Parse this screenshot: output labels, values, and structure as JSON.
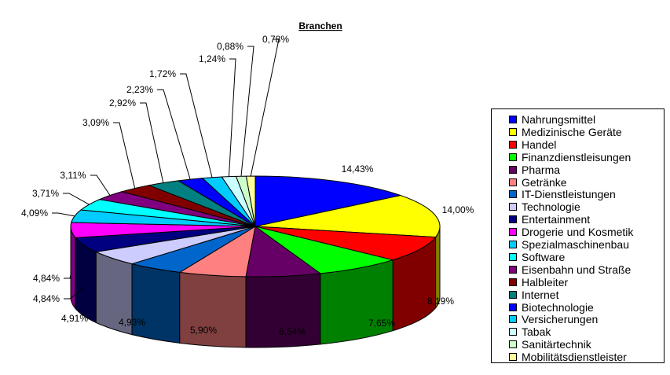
{
  "chart_data": {
    "type": "pie",
    "title": "Branchen",
    "three_d": true,
    "legend_position": "right",
    "categories": [
      "Nahrungsmittel",
      "Medizinische Geräte",
      "Handel",
      "Finanzdienstleisungen",
      "Pharma",
      "Getränke",
      "IT-Dienstleistungen",
      "Technologie",
      "Entertainment",
      "Drogerie und Kosmetik",
      "Spezialmaschinenbau",
      "Software",
      "Eisenbahn und Straße",
      "Halbleiter",
      "Internet",
      "Biotechnologie",
      "Versicherungen",
      "Tabak",
      "Sanitärtechnik",
      "Mobilitätsdienstleister"
    ],
    "values": [
      14.43,
      14.0,
      8.19,
      7.65,
      6.54,
      5.9,
      4.93,
      4.91,
      4.84,
      4.84,
      4.09,
      3.71,
      3.11,
      3.09,
      2.92,
      2.23,
      1.72,
      1.24,
      0.88,
      0.78
    ],
    "data_labels": [
      "14,43%",
      "14,00%",
      "8,19%",
      "7,65%",
      "6,54%",
      "5,90%",
      "4,93%",
      "4,91%",
      "4,84%",
      "4,84%",
      "4,09%",
      "3,71%",
      "3,11%",
      "3,09%",
      "2,92%",
      "2,23%",
      "1,72%",
      "1,24%",
      "0,88%",
      "0,78%"
    ],
    "colors": [
      "#0000ff",
      "#ffff00",
      "#ff0000",
      "#00ff00",
      "#660066",
      "#ff8080",
      "#0066cc",
      "#ccccff",
      "#000080",
      "#ff00ff",
      "#00ccff",
      "#00ffff",
      "#800080",
      "#800000",
      "#008080",
      "#0000ff",
      "#00ccff",
      "#ccffff",
      "#ccffcc",
      "#ffff99"
    ]
  }
}
